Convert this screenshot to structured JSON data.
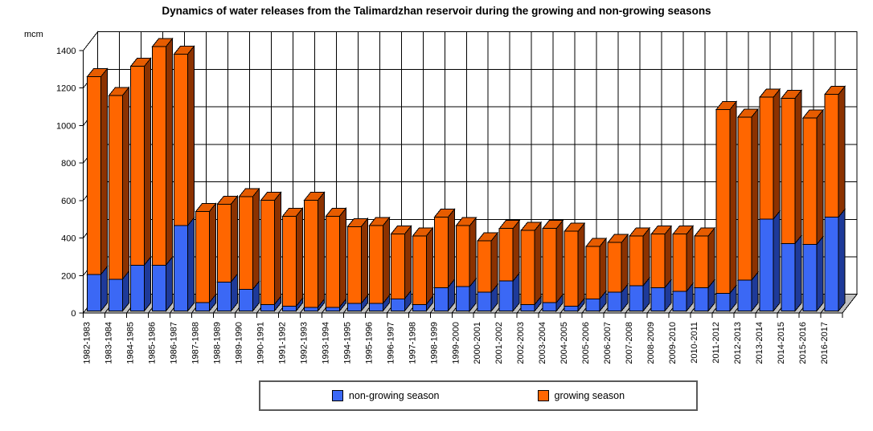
{
  "title": "Dynamics of water releases from the Talimardzhan reservoir during the growing and non-growing seasons",
  "chart_data": {
    "type": "bar",
    "stacked": true,
    "effect": "3d",
    "title": "Dynamics of water releases from the Talimardzhan reservoir during the growing and non-growing seasons",
    "ylabel": "mcm",
    "xlabel": "",
    "ylim": [
      0,
      1400
    ],
    "ytick_step": 200,
    "grid": true,
    "legend_position": "bottom",
    "categories": [
      "1982-1983",
      "1983-1984",
      "1984-1985",
      "1985-1986",
      "1986-1987",
      "1987-1988",
      "1988-1989",
      "1989-1990",
      "1990-1991",
      "1991-1992",
      "1992-1993",
      "1993-1994",
      "1994-1995",
      "1995-1996",
      "1996-1997",
      "1997-1998",
      "1998-1999",
      "1999-2000",
      "2000-2001",
      "2001-2002",
      "2002-2003",
      "2003-2004",
      "2004-2005",
      "2005-2006",
      "2006-2007",
      "2007-2008",
      "2008-2009",
      "2009-2010",
      "2010-2011",
      "2011-2012",
      "2012-2013",
      "2013-2014",
      "2014-2015",
      "2015-2016",
      "2016-2017"
    ],
    "series": [
      {
        "name": "non-growing season",
        "color": "#3B68F5",
        "color_key": "non_growing",
        "values": [
          195,
          170,
          245,
          245,
          455,
          45,
          155,
          115,
          35,
          25,
          20,
          20,
          40,
          40,
          65,
          35,
          125,
          130,
          100,
          160,
          35,
          45,
          25,
          65,
          100,
          135,
          125,
          105,
          125,
          95,
          165,
          490,
          360,
          355,
          500
        ]
      },
      {
        "name": "growing season",
        "color": "#FF6600",
        "color_key": "growing",
        "values": [
          1055,
          980,
          1060,
          1165,
          915,
          485,
          415,
          495,
          555,
          480,
          570,
          485,
          410,
          415,
          345,
          365,
          375,
          325,
          275,
          280,
          395,
          395,
          400,
          280,
          265,
          265,
          285,
          305,
          275,
          980,
          870,
          650,
          775,
          675,
          655
        ]
      }
    ],
    "totals": [
      1250,
      1150,
      1305,
      1410,
      1370,
      530,
      570,
      610,
      590,
      505,
      590,
      505,
      450,
      455,
      410,
      400,
      500,
      455,
      375,
      440,
      430,
      440,
      425,
      345,
      365,
      400,
      410,
      410,
      400,
      1075,
      1035,
      1140,
      1135,
      1030,
      1155
    ],
    "colors": {
      "non_growing": {
        "front": "#3B68F5",
        "side": "#1E3A99",
        "top": "#2F54CC"
      },
      "growing": {
        "front": "#FF6600",
        "side": "#8C3200",
        "top": "#E65C00"
      },
      "floor": "#C0C0C0",
      "wall": "#FFFFFF",
      "outline": "#000000"
    }
  }
}
